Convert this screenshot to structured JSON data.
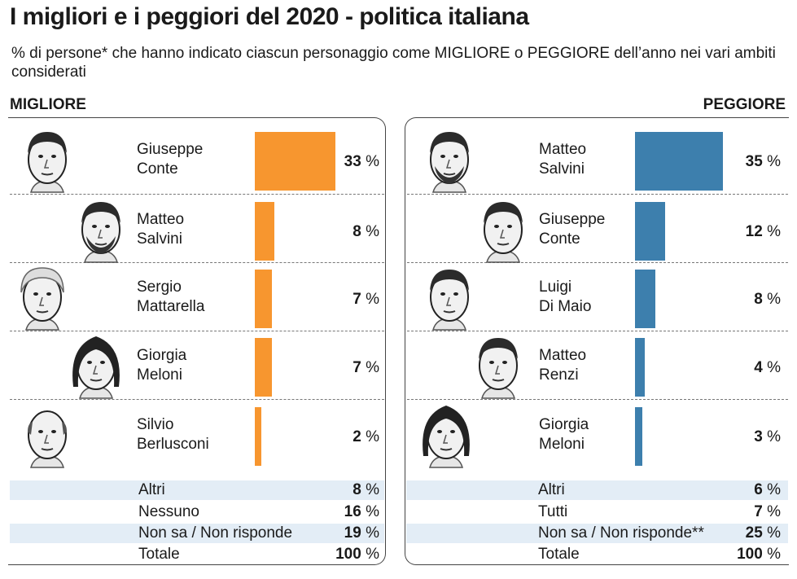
{
  "title": "I migliori e i peggiori del 2020 - politica italiana",
  "subtitle": "% di persone* che hanno indicato ciascun personaggio come MIGLIORE o PEGGIORE dell’anno nei vari ambiti considerati",
  "colors": {
    "best": "#f7962f",
    "worst": "#3d7fad",
    "shade": "#e3edf6"
  },
  "chart_data": [
    {
      "type": "bar",
      "title": "MIGLIORE",
      "categories": [
        "Giuseppe Conte",
        "Matteo Salvini",
        "Sergio Mattarella",
        "Giorgia Meloni",
        "Silvio Berlusconi"
      ],
      "values": [
        33,
        8,
        7,
        7,
        2
      ],
      "names": [
        [
          "Giuseppe",
          "Conte"
        ],
        [
          "Matteo",
          "Salvini"
        ],
        [
          "Sergio",
          "Mattarella"
        ],
        [
          "Giorgia",
          "Meloni"
        ],
        [
          "Silvio",
          "Berlusconi"
        ]
      ],
      "faces": [
        "face-giuseppe-conte-icon",
        "face-matteo-salvini-icon",
        "face-sergio-mattarella-icon",
        "face-giorgia-meloni-icon",
        "face-silvio-berlusconi-icon"
      ],
      "unit": "%",
      "extras": [
        {
          "label": "Altri",
          "value": 8
        },
        {
          "label": "Nessuno",
          "value": 16
        },
        {
          "label": "Non sa / Non risponde",
          "value": 19
        },
        {
          "label": "Totale",
          "value": 100
        }
      ]
    },
    {
      "type": "bar",
      "title": "PEGGIORE",
      "categories": [
        "Matteo Salvini",
        "Giuseppe Conte",
        "Luigi Di Maio",
        "Matteo Renzi",
        "Giorgia Meloni"
      ],
      "values": [
        35,
        12,
        8,
        4,
        3
      ],
      "names": [
        [
          "Matteo",
          "Salvini"
        ],
        [
          "Giuseppe",
          "Conte"
        ],
        [
          "Luigi",
          "Di Maio"
        ],
        [
          "Matteo",
          "Renzi"
        ],
        [
          "Giorgia",
          "Meloni"
        ]
      ],
      "faces": [
        "face-matteo-salvini-icon",
        "face-giuseppe-conte-icon",
        "face-luigi-di-maio-icon",
        "face-matteo-renzi-icon",
        "face-giorgia-meloni-icon"
      ],
      "unit": "%",
      "extras": [
        {
          "label": "Altri",
          "value": 6
        },
        {
          "label": "Tutti",
          "value": 7
        },
        {
          "label": "Non sa / Non risponde**",
          "value": 25
        },
        {
          "label": "Totale",
          "value": 100
        }
      ]
    }
  ]
}
